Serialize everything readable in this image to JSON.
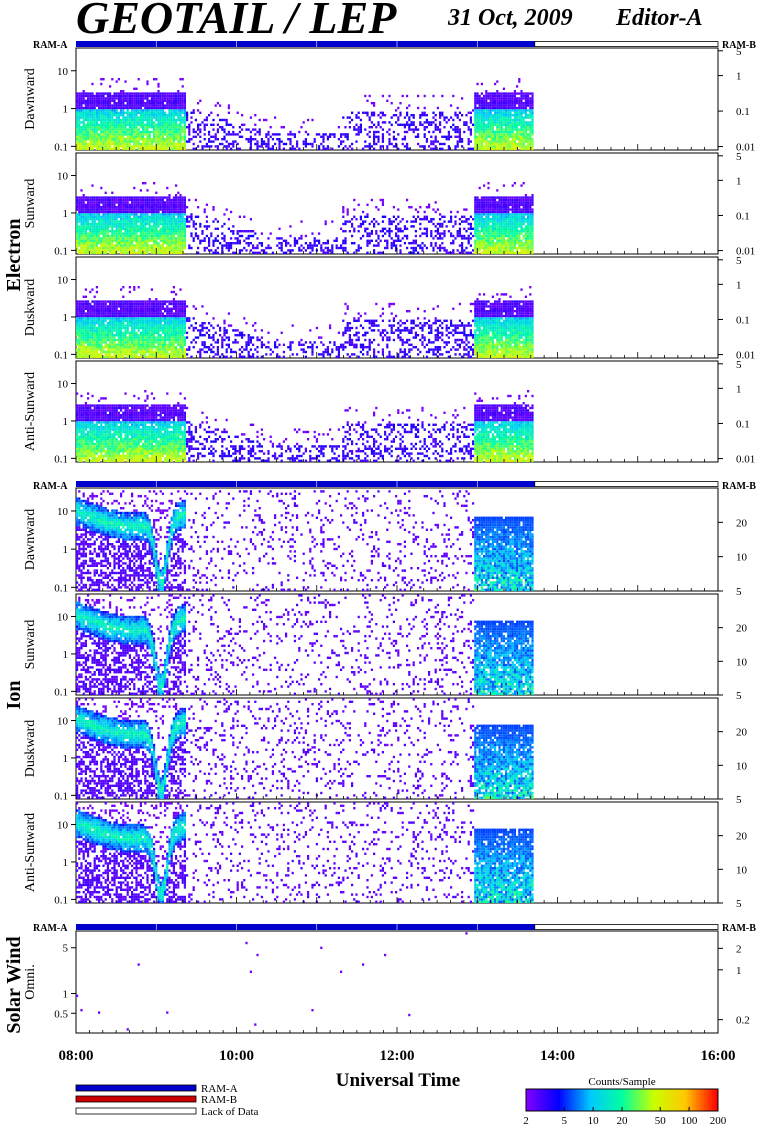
{
  "header": {
    "title": "GEOTAIL / LEP",
    "date": "31 Oct, 2009",
    "editor": "Editor-A"
  },
  "chart_data": {
    "type": "heatmap",
    "xlabel": "Universal Time",
    "x_range": [
      "08:00",
      "16:00"
    ],
    "x_tick_labels": [
      "08:00",
      "10:00",
      "12:00",
      "14:00",
      "16:00"
    ],
    "data_end": "13:43",
    "ram_status": {
      "RAM-A": [
        "08:00",
        "13:43"
      ],
      "Lack of Data": [
        "13:43",
        "16:00"
      ]
    },
    "groups": [
      {
        "name": "Electron",
        "panels": [
          {
            "label": "Dawnward",
            "left_ticks": [
              0.1,
              1,
              10
            ],
            "left_range": [
              0.08,
              40
            ],
            "right_ticks": [
              0.01,
              0.1,
              1,
              5
            ],
            "right_range": [
              0.008,
              6
            ],
            "style": "electron",
            "bands": [
              [
                0,
                1,
                0.38,
                0.14,
                0.95
              ]
            ]
          },
          {
            "label": "Sunward",
            "left_ticks": [
              0.1,
              1,
              10
            ],
            "left_range": [
              0.08,
              40
            ],
            "right_ticks": [
              0.01,
              0.1,
              1,
              5
            ],
            "right_range": [
              0.008,
              6
            ],
            "style": "electron",
            "bands": [
              [
                0,
                1,
                0.38,
                0.14,
                0.95
              ]
            ]
          },
          {
            "label": "Duskward",
            "left_ticks": [
              0.1,
              1,
              10
            ],
            "left_range": [
              0.08,
              40
            ],
            "right_ticks": [
              0.01,
              0.1,
              1,
              5
            ],
            "right_range": [
              0.008,
              6
            ],
            "style": "electron",
            "bands": [
              [
                0,
                1,
                0.38,
                0.14,
                0.95
              ]
            ]
          },
          {
            "label": "Anti-Sunward",
            "left_ticks": [
              0.1,
              1,
              10
            ],
            "left_range": [
              0.08,
              40
            ],
            "right_ticks": [
              0.01,
              0.1,
              1,
              5
            ],
            "right_range": [
              0.008,
              6
            ],
            "style": "electron",
            "bands": [
              [
                0,
                1,
                0.38,
                0.14,
                0.95
              ]
            ]
          }
        ]
      },
      {
        "name": "Ion",
        "panels": [
          {
            "label": "Dawnward",
            "left_ticks": [
              0.1,
              1,
              10
            ],
            "left_range": [
              0.08,
              40
            ],
            "right_ticks": [
              5,
              10,
              20
            ],
            "right_range": [
              5,
              40
            ],
            "style": "ion",
            "bands": [
              [
                0,
                1,
                0.78,
                0.1,
                1.0
              ]
            ]
          },
          {
            "label": "Sunward",
            "left_ticks": [
              0.1,
              1,
              10
            ],
            "left_range": [
              0.08,
              40
            ],
            "right_ticks": [
              5,
              10,
              20
            ],
            "right_range": [
              5,
              40
            ],
            "style": "ion",
            "bands": [
              [
                0,
                1,
                0.85,
                0.1,
                1.0
              ]
            ]
          },
          {
            "label": "Duskward",
            "left_ticks": [
              0.1,
              1,
              10
            ],
            "left_range": [
              0.08,
              40
            ],
            "right_ticks": [
              5,
              10,
              20
            ],
            "right_range": [
              5,
              40
            ],
            "style": "ion",
            "bands": [
              [
                0,
                1,
                0.8,
                0.1,
                1.0
              ]
            ]
          },
          {
            "label": "Anti-Sunward",
            "left_ticks": [
              0.1,
              1,
              10
            ],
            "left_range": [
              0.08,
              40
            ],
            "right_ticks": [
              5,
              10,
              20
            ],
            "right_range": [
              5,
              40
            ],
            "style": "ion",
            "bands": [
              [
                0,
                1,
                0.75,
                0.1,
                1.0
              ]
            ]
          }
        ]
      },
      {
        "name": "Solar Wind",
        "panels": [
          {
            "label": "Omni.",
            "left_ticks": [
              0.5,
              1,
              5
            ],
            "left_range": [
              0.25,
              9
            ],
            "right_ticks": [
              0.2,
              1,
              2
            ],
            "right_range": [
              0.13,
              3.5
            ],
            "style": "sparse",
            "bands": []
          }
        ]
      }
    ],
    "legend": [
      {
        "label": "RAM-A",
        "color": "#0000cc"
      },
      {
        "label": "RAM-B",
        "color": "#cc0000"
      },
      {
        "label": "Lack of Data",
        "color": "#ffffff"
      }
    ],
    "colorbar": {
      "title": "Counts/Sample",
      "ticks": [
        2,
        5,
        10,
        20,
        50,
        100,
        200
      ],
      "range": [
        2,
        200
      ],
      "colors": [
        "#8000ff",
        "#0000ff",
        "#00c8ff",
        "#00ffa0",
        "#c8ff00",
        "#ffc800",
        "#ff0000"
      ]
    }
  }
}
